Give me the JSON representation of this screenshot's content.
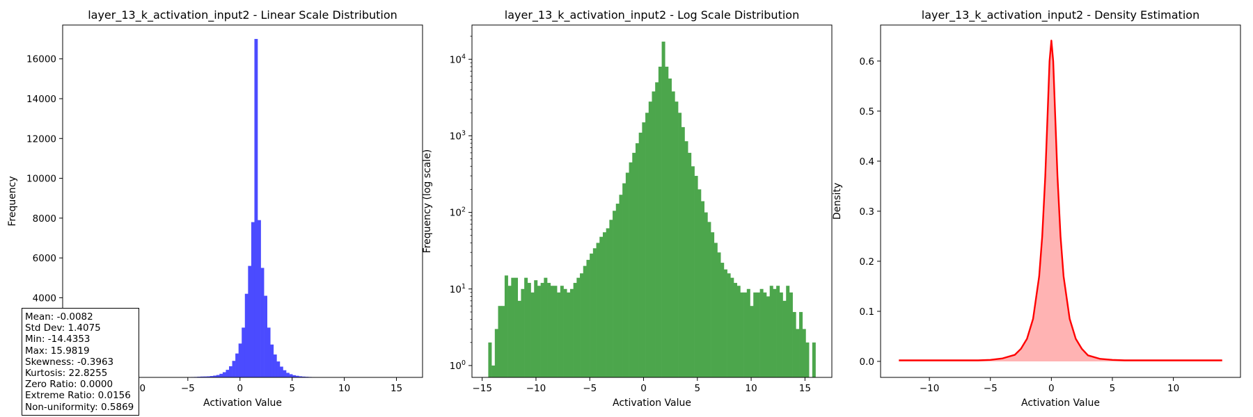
{
  "chart_data": [
    {
      "type": "bar",
      "title": "layer_13_k_activation_input2 - Linear Scale Distribution",
      "xlabel": "Activation Value",
      "ylabel": "Frequency",
      "xlim": [
        -17.0,
        17.5
      ],
      "ylim": [
        0,
        17700
      ],
      "xticks": [
        -10,
        -5,
        0,
        5,
        10,
        15
      ],
      "xtick_labels": [
        "−10",
        "−5",
        "0",
        "5",
        "10",
        "15"
      ],
      "yticks": [
        4000,
        6000,
        8000,
        10000,
        12000,
        14000,
        16000
      ],
      "ytick_labels": [
        "4000",
        "6000",
        "8000",
        "10000",
        "12000",
        "14000",
        "16000"
      ],
      "color": "#4b4bff",
      "bin_edges_range": [
        -14.4353,
        15.9819
      ],
      "bin_count": 100,
      "values": [
        1,
        0,
        4,
        6,
        6,
        15,
        11,
        14,
        14,
        7,
        10,
        14,
        12,
        9,
        13,
        11,
        12,
        14,
        12,
        11,
        11,
        9,
        11,
        10,
        8,
        9,
        10,
        9,
        8,
        12,
        12,
        14,
        20,
        24,
        33,
        42,
        46,
        52,
        68,
        90,
        120,
        180,
        260,
        380,
        560,
        830,
        1200,
        1700,
        2500,
        4200,
        5600,
        7800,
        17000,
        7900,
        5500,
        4100,
        2500,
        1650,
        1150,
        800,
        540,
        360,
        230,
        160,
        110,
        80,
        55,
        40,
        30,
        22,
        18,
        14,
        13,
        12,
        11,
        9,
        9,
        10,
        6,
        9,
        9,
        10,
        9,
        8,
        11,
        10,
        11,
        9,
        7,
        11,
        9,
        5,
        3,
        5,
        3,
        2,
        0,
        0,
        0,
        1
      ],
      "grid": false,
      "legend": "none"
    },
    {
      "type": "bar",
      "title": "layer_13_k_activation_input2 - Log Scale Distribution",
      "xlabel": "Activation Value",
      "ylabel": "Frequency (log scale)",
      "yscale": "log",
      "xlim": [
        -15.95,
        17.5
      ],
      "ylim": [
        0.7,
        28000
      ],
      "xticks": [
        -15,
        -10,
        -5,
        0,
        5,
        10,
        15
      ],
      "xtick_labels": [
        "−15",
        "−10",
        "−5",
        "0",
        "5",
        "10",
        "15"
      ],
      "yticks": [
        1,
        10,
        100,
        1000,
        10000
      ],
      "ytick_labels": [
        "10^0",
        "10^1",
        "10^2",
        "10^3",
        "10^4"
      ],
      "color": "#4ca64c",
      "bin_edges_range": [
        -14.4353,
        15.9819
      ],
      "bin_count": 100,
      "values": [
        2,
        1,
        3,
        6,
        6,
        15,
        11,
        14,
        14,
        7,
        10,
        14,
        12,
        9,
        13,
        11,
        12,
        14,
        12,
        11,
        11,
        9,
        11,
        10,
        9,
        10,
        12,
        14,
        16,
        20,
        24,
        29,
        34,
        40,
        48,
        55,
        62,
        80,
        105,
        130,
        170,
        240,
        330,
        450,
        600,
        800,
        1100,
        1500,
        2000,
        2800,
        3800,
        5000,
        8000,
        17000,
        8000,
        5600,
        3800,
        2800,
        2000,
        1300,
        850,
        600,
        400,
        300,
        200,
        140,
        100,
        75,
        55,
        40,
        30,
        22,
        18,
        16,
        14,
        12,
        11,
        9,
        9,
        10,
        6,
        9,
        9,
        10,
        9,
        8,
        11,
        10,
        11,
        9,
        7,
        11,
        9,
        5,
        3,
        5,
        3,
        2,
        0,
        2
      ],
      "grid": false,
      "legend": "none"
    },
    {
      "type": "area",
      "title": "layer_13_k_activation_input2 - Density Estimation",
      "xlabel": "Activation Value",
      "ylabel": "Density",
      "xlim": [
        -14.0,
        15.5
      ],
      "ylim": [
        -0.032,
        0.672
      ],
      "xticks": [
        -10,
        -5,
        0,
        5,
        10
      ],
      "xtick_labels": [
        "−10",
        "−5",
        "0",
        "5",
        "10"
      ],
      "yticks": [
        0.0,
        0.1,
        0.2,
        0.3,
        0.4,
        0.5,
        0.6
      ],
      "ytick_labels": [
        "0.0",
        "0.1",
        "0.2",
        "0.3",
        "0.4",
        "0.5",
        "0.6"
      ],
      "line_color": "#ff0000",
      "fill_color": "#ffb3b3",
      "x": [
        -12.5,
        -10,
        -8,
        -6,
        -5,
        -4,
        -3,
        -2.5,
        -2,
        -1.5,
        -1,
        -0.75,
        -0.5,
        -0.3,
        -0.15,
        0,
        0.15,
        0.3,
        0.5,
        0.75,
        1,
        1.5,
        2,
        2.5,
        3,
        4,
        5,
        6,
        8,
        10,
        12,
        14
      ],
      "y": [
        0.002,
        0.002,
        0.002,
        0.002,
        0.003,
        0.006,
        0.013,
        0.025,
        0.045,
        0.085,
        0.17,
        0.25,
        0.37,
        0.5,
        0.6,
        0.641,
        0.6,
        0.5,
        0.37,
        0.25,
        0.17,
        0.085,
        0.045,
        0.025,
        0.012,
        0.005,
        0.003,
        0.002,
        0.002,
        0.002,
        0.002,
        0.002
      ],
      "grid": false,
      "legend": "none"
    }
  ],
  "stats": {
    "mean": "Mean: -0.0082",
    "std": "Std Dev: 1.4075",
    "min": "Min: -14.4353",
    "max": "Max: 15.9819",
    "skewness": "Skewness: -0.3963",
    "kurtosis": "Kurtosis: 22.8255",
    "zero_ratio": "Zero Ratio: 0.0000",
    "extreme_ratio": "Extreme Ratio: 0.0156",
    "non_uniformity": "Non-uniformity: 0.5869"
  }
}
